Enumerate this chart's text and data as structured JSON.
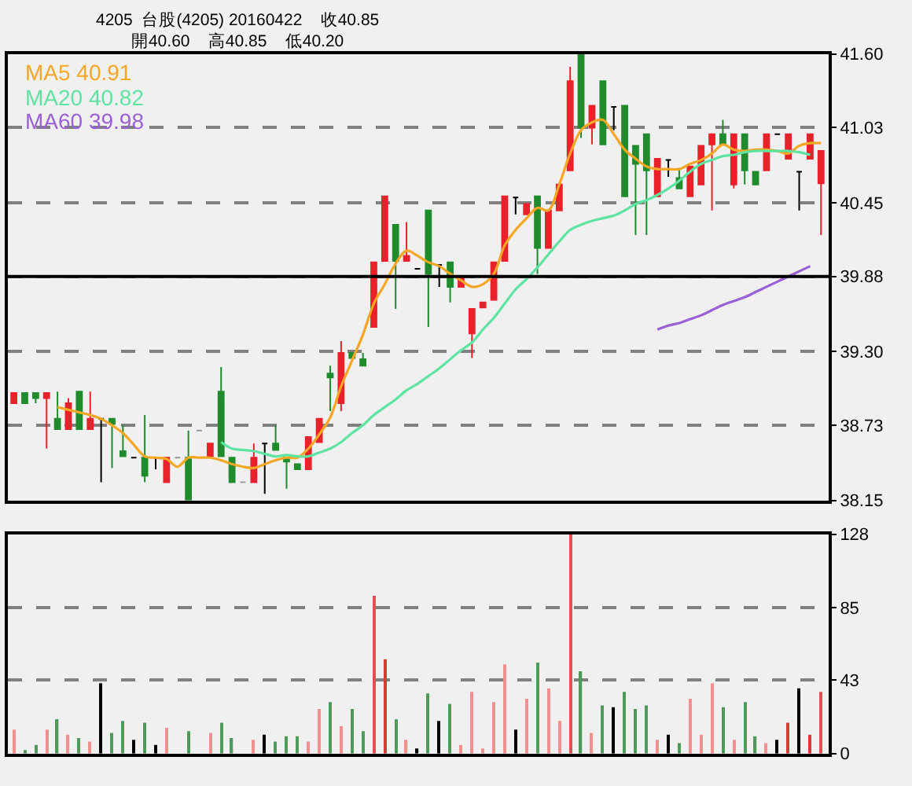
{
  "chart_data": [
    {
      "type": "candlestick",
      "title": "4205  台股(4205) 20160422    收40.85\n開40.60    高40.85    低40.20",
      "categories": [
        null,
        null,
        null,
        null,
        null,
        null,
        null,
        null,
        null,
        null,
        null,
        null,
        null,
        null,
        null,
        null,
        null,
        null,
        null,
        null,
        null,
        null,
        null,
        null,
        null,
        null,
        null,
        null,
        null,
        null,
        null,
        null,
        null,
        null,
        null,
        null,
        null,
        null,
        null,
        null,
        null,
        null,
        null,
        null,
        null,
        null,
        null,
        null,
        null,
        null,
        null,
        null,
        null,
        null,
        null,
        null,
        null,
        null,
        null,
        null,
        null,
        null,
        null,
        null,
        null,
        null,
        null,
        null,
        null,
        null,
        null,
        null,
        null,
        null,
        null
      ],
      "ohlc": [
        [
          38.9,
          38.98,
          38.9,
          38.98
        ],
        [
          38.98,
          38.98,
          38.9,
          38.9
        ],
        [
          38.98,
          38.98,
          38.9,
          38.94
        ],
        [
          38.94,
          38.98,
          38.55,
          38.98
        ],
        [
          38.78,
          38.99,
          38.7,
          38.7
        ],
        [
          38.7,
          38.94,
          38.7,
          38.9
        ],
        [
          38.99,
          38.99,
          38.7,
          38.7
        ],
        [
          38.7,
          38.99,
          38.7,
          38.78
        ],
        [
          38.78,
          38.78,
          38.29,
          38.78
        ],
        [
          38.78,
          38.78,
          38.4,
          38.74
        ],
        [
          38.53,
          38.73,
          38.49,
          38.49
        ],
        [
          38.48,
          38.48,
          38.48,
          38.48
        ],
        [
          38.48,
          38.81,
          38.29,
          38.34
        ],
        [
          38.48,
          38.48,
          38.39,
          38.48
        ],
        [
          38.29,
          38.48,
          38.29,
          38.48
        ],
        [
          38.48,
          38.48,
          38.48,
          38.48
        ],
        [
          38.48,
          38.69,
          38.15,
          38.15
        ],
        [
          38.69,
          38.69,
          38.69,
          38.69
        ],
        [
          38.49,
          38.59,
          38.49,
          38.59
        ],
        [
          38.99,
          39.18,
          38.49,
          38.49
        ],
        [
          38.48,
          38.48,
          38.29,
          38.29
        ],
        [
          38.29,
          38.29,
          38.29,
          38.29
        ],
        [
          38.29,
          38.59,
          38.29,
          38.48
        ],
        [
          38.59,
          38.59,
          38.2,
          38.59
        ],
        [
          38.59,
          38.73,
          38.54,
          38.54
        ],
        [
          38.48,
          38.48,
          38.24,
          38.45
        ],
        [
          38.43,
          38.43,
          38.39,
          38.39
        ],
        [
          38.39,
          38.64,
          38.39,
          38.64
        ],
        [
          38.6,
          38.78,
          38.6,
          38.78
        ],
        [
          39.13,
          39.19,
          38.84,
          39.1
        ],
        [
          38.9,
          39.38,
          38.84,
          39.29
        ],
        [
          39.29,
          39.29,
          39.25,
          39.25
        ],
        [
          39.24,
          39.29,
          39.19,
          39.19
        ],
        [
          39.49,
          39.99,
          39.49,
          39.99
        ],
        [
          40.0,
          40.5,
          40.0,
          40.5
        ],
        [
          40.28,
          40.28,
          39.63,
          40.0
        ],
        [
          40.0,
          40.3,
          40.0,
          40.04
        ],
        [
          39.94,
          39.94,
          39.94,
          39.94
        ],
        [
          40.39,
          40.39,
          39.49,
          39.9
        ],
        [
          39.97,
          39.97,
          39.8,
          39.97
        ],
        [
          39.99,
          39.99,
          39.68,
          39.8
        ],
        [
          39.8,
          39.88,
          39.8,
          39.88
        ],
        [
          39.44,
          39.63,
          39.25,
          39.63
        ],
        [
          39.64,
          39.68,
          39.64,
          39.68
        ],
        [
          39.7,
          39.99,
          39.7,
          39.99
        ],
        [
          40.0,
          40.5,
          40.0,
          40.5
        ],
        [
          40.49,
          40.49,
          40.36,
          40.49
        ],
        [
          40.36,
          40.44,
          40.36,
          40.44
        ],
        [
          40.5,
          40.5,
          39.9,
          40.1
        ],
        [
          40.1,
          40.39,
          40.1,
          40.39
        ],
        [
          40.39,
          40.59,
          40.39,
          40.59
        ],
        [
          40.7,
          41.5,
          40.7,
          41.39
        ],
        [
          41.6,
          41.6,
          40.95,
          41.03
        ],
        [
          41.03,
          41.2,
          40.9,
          41.2
        ],
        [
          41.39,
          41.39,
          40.9,
          40.9
        ],
        [
          41.19,
          41.19,
          41.01,
          41.19
        ],
        [
          41.2,
          41.2,
          40.5,
          40.5
        ],
        [
          40.89,
          40.89,
          40.2,
          40.75
        ],
        [
          40.98,
          40.98,
          40.2,
          40.7
        ],
        [
          40.5,
          40.79,
          40.5,
          40.79
        ],
        [
          40.78,
          40.78,
          40.65,
          40.78
        ],
        [
          40.64,
          40.71,
          40.56,
          40.56
        ],
        [
          40.5,
          40.73,
          40.5,
          40.73
        ],
        [
          40.59,
          40.89,
          40.59,
          40.89
        ],
        [
          40.9,
          40.98,
          40.39,
          40.98
        ],
        [
          40.98,
          41.09,
          40.9,
          40.9
        ],
        [
          40.59,
          40.98,
          40.56,
          40.98
        ],
        [
          40.98,
          40.98,
          40.59,
          40.7
        ],
        [
          40.69,
          40.69,
          40.59,
          40.59
        ],
        [
          40.7,
          40.98,
          40.7,
          40.98
        ],
        [
          40.98,
          40.98,
          40.98,
          40.98
        ],
        [
          40.79,
          40.98,
          40.79,
          40.98
        ],
        [
          40.69,
          40.69,
          40.39,
          40.69
        ],
        [
          40.79,
          40.98,
          40.79,
          40.98
        ],
        [
          40.6,
          40.85,
          40.2,
          40.85
        ]
      ],
      "colors": [
        "#e8212a",
        "#1f8b2c",
        "#1f8b2c",
        "#e8212a",
        "#1f8b2c",
        "#e8212a",
        "#1f8b2c",
        "#e8212a",
        "#000000",
        "#1f8b2c",
        "#1f8b2c",
        "#000000",
        "#1f8b2c",
        "#000000",
        "#e8212a",
        "#999999",
        "#1f8b2c",
        "#999999",
        "#e8212a",
        "#1f8b2c",
        "#1f8b2c",
        "#999999",
        "#e8212a",
        "#000000",
        "#1f8b2c",
        "#1f8b2c",
        "#1f8b2c",
        "#e8212a",
        "#e8212a",
        "#1f8b2c",
        "#e8212a",
        "#1f8b2c",
        "#1f8b2c",
        "#e8212a",
        "#e8212a",
        "#1f8b2c",
        "#e8212a",
        "#000000",
        "#1f8b2c",
        "#000000",
        "#1f8b2c",
        "#e8212a",
        "#e8212a",
        "#e8212a",
        "#e8212a",
        "#e8212a",
        "#000000",
        "#e8212a",
        "#1f8b2c",
        "#e8212a",
        "#e8212a",
        "#e8212a",
        "#1f8b2c",
        "#e8212a",
        "#1f8b2c",
        "#000000",
        "#1f8b2c",
        "#1f8b2c",
        "#1f8b2c",
        "#e8212a",
        "#000000",
        "#1f8b2c",
        "#e8212a",
        "#e8212a",
        "#e8212a",
        "#1f8b2c",
        "#e8212a",
        "#1f8b2c",
        "#1f8b2c",
        "#e8212a",
        "#000000",
        "#e8212a",
        "#000000",
        "#e8212a",
        "#e8212a"
      ],
      "series": [
        {
          "type": "line",
          "name": "MA5 40.91",
          "color": "#f5a623",
          "values": [
            null,
            null,
            null,
            null,
            38.87,
            38.85,
            38.83,
            38.81,
            38.78,
            38.73,
            38.67,
            38.58,
            38.49,
            38.48,
            38.47,
            38.41,
            38.48,
            38.48,
            38.48,
            38.46,
            38.43,
            38.41,
            38.4,
            38.43,
            38.46,
            38.48,
            38.48,
            38.55,
            38.66,
            38.79,
            39.03,
            39.23,
            39.43,
            39.67,
            39.82,
            39.98,
            40.08,
            40.04,
            39.99,
            39.96,
            39.9,
            39.85,
            39.8,
            39.82,
            39.9,
            40.12,
            40.24,
            40.33,
            40.41,
            40.39,
            40.59,
            40.83,
            41.01,
            41.07,
            41.09,
            40.98,
            40.86,
            40.79,
            40.73,
            40.71,
            40.71,
            40.71,
            40.75,
            40.78,
            40.83,
            40.9,
            40.86,
            40.85,
            40.86,
            40.86,
            40.85,
            40.83,
            40.89,
            40.91,
            40.91
          ]
        },
        {
          "type": "line",
          "name": "MA20 40.82",
          "color": "#5fe3a1",
          "values": [
            null,
            null,
            null,
            null,
            null,
            null,
            null,
            null,
            null,
            null,
            null,
            null,
            null,
            null,
            null,
            null,
            null,
            null,
            null,
            38.6,
            38.55,
            38.54,
            38.53,
            38.51,
            38.49,
            38.5,
            38.49,
            38.49,
            38.52,
            38.55,
            38.6,
            38.67,
            38.73,
            38.81,
            38.87,
            38.93,
            39.0,
            39.05,
            39.11,
            39.17,
            39.24,
            39.31,
            39.37,
            39.47,
            39.56,
            39.67,
            39.78,
            39.86,
            39.95,
            40.05,
            40.15,
            40.24,
            40.28,
            40.31,
            40.33,
            40.35,
            40.39,
            40.44,
            40.47,
            40.51,
            40.56,
            40.62,
            40.69,
            40.75,
            40.78,
            40.81,
            40.82,
            40.84,
            40.85,
            40.85,
            40.85,
            40.85,
            40.84,
            40.82,
            null
          ]
        },
        {
          "type": "line",
          "name": "MA60 39.98",
          "color": "#9b5fd6",
          "values": [
            null,
            null,
            null,
            null,
            null,
            null,
            null,
            null,
            null,
            null,
            null,
            null,
            null,
            null,
            null,
            null,
            null,
            null,
            null,
            null,
            null,
            null,
            null,
            null,
            null,
            null,
            null,
            null,
            null,
            null,
            null,
            null,
            null,
            null,
            null,
            null,
            null,
            null,
            null,
            null,
            null,
            null,
            null,
            null,
            null,
            null,
            null,
            null,
            null,
            null,
            null,
            null,
            null,
            null,
            null,
            null,
            null,
            null,
            null,
            39.47,
            39.5,
            39.52,
            39.55,
            39.58,
            39.62,
            39.66,
            39.69,
            39.72,
            39.76,
            39.8,
            39.84,
            39.88,
            39.92,
            39.96,
            null
          ]
        }
      ],
      "ylim": [
        38.15,
        41.6
      ],
      "yticks": [
        {
          "value": 38.15,
          "label": "38.15"
        },
        38.73,
        {
          "value": 39.3,
          "label": "39.30"
        },
        39.88,
        40.45,
        41.03,
        {
          "value": 41.6,
          "label": "41.60"
        }
      ],
      "grid": "y",
      "ref_lines": [
        {
          "axis": "y",
          "value": 39.88,
          "color": "#000000",
          "line_style": "solid"
        }
      ],
      "tick_labels": "y"
    },
    {
      "type": "bar",
      "categories": [
        null,
        null,
        null,
        null,
        null,
        null,
        null,
        null,
        null,
        null,
        null,
        null,
        null,
        null,
        null,
        null,
        null,
        null,
        null,
        null,
        null,
        null,
        null,
        null,
        null,
        null,
        null,
        null,
        null,
        null,
        null,
        null,
        null,
        null,
        null,
        null,
        null,
        null,
        null,
        null,
        null,
        null,
        null,
        null,
        null,
        null,
        null,
        null,
        null,
        null,
        null,
        null,
        null,
        null,
        null,
        null,
        null,
        null,
        null,
        null,
        null,
        null,
        null,
        null,
        null,
        null,
        null,
        null,
        null,
        null,
        null,
        null,
        null,
        null,
        null
      ],
      "values": [
        14,
        2,
        5,
        14,
        20,
        11,
        9,
        7,
        41,
        12,
        19,
        8,
        18,
        5,
        15,
        0,
        13,
        0,
        12,
        18,
        9,
        0,
        8,
        11,
        7,
        10,
        10,
        7,
        26,
        30,
        16,
        26,
        13,
        92,
        55,
        20,
        8,
        3,
        35,
        19,
        29,
        5,
        36,
        3,
        30,
        52,
        14,
        32,
        53,
        38,
        19,
        128,
        48,
        12,
        28,
        27,
        36,
        26,
        28,
        8,
        11,
        6,
        32,
        11,
        41,
        27,
        8,
        30,
        10,
        6,
        8,
        18,
        38,
        11,
        36
      ],
      "colors": [
        "#f09090",
        "#4f9a5a",
        "#4f9a5a",
        "#f09090",
        "#4f9a5a",
        "#f09090",
        "#4f9a5a",
        "#f09090",
        "#000000",
        "#4f9a5a",
        "#4f9a5a",
        "#000000",
        "#4f9a5a",
        "#000000",
        "#f09090",
        "#999999",
        "#4f9a5a",
        "#999999",
        "#f09090",
        "#4f9a5a",
        "#4f9a5a",
        "#999999",
        "#f09090",
        "#000000",
        "#4f9a5a",
        "#4f9a5a",
        "#4f9a5a",
        "#f09090",
        "#f09090",
        "#4f9a5a",
        "#f09090",
        "#4f9a5a",
        "#4f9a5a",
        "#e05050",
        "#d83a3a",
        "#4f9a5a",
        "#f09090",
        "#000000",
        "#4f9a5a",
        "#000000",
        "#4f9a5a",
        "#f09090",
        "#f09090",
        "#f09090",
        "#f09090",
        "#f09090",
        "#000000",
        "#f09090",
        "#4f9a5a",
        "#f09090",
        "#f09090",
        "#e05050",
        "#4f9a5a",
        "#f09090",
        "#4f9a5a",
        "#000000",
        "#4f9a5a",
        "#4f9a5a",
        "#4f9a5a",
        "#f09090",
        "#000000",
        "#4f9a5a",
        "#f09090",
        "#f09090",
        "#f09090",
        "#4f9a5a",
        "#f09090",
        "#4f9a5a",
        "#4f9a5a",
        "#f09090",
        "#000000",
        "#d83a3a",
        "#000000",
        "#d83a3a",
        "#e05050"
      ],
      "ylim": [
        0,
        128
      ],
      "yticks": [
        0,
        43,
        85,
        128
      ],
      "grid": "y",
      "tick_labels": "y"
    }
  ]
}
